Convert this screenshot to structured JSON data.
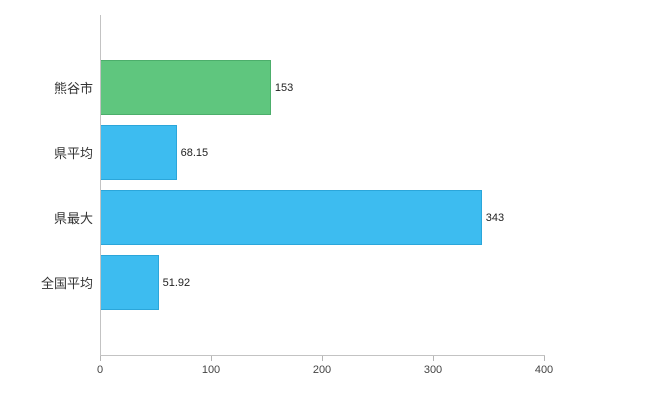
{
  "chart_data": {
    "type": "bar",
    "orientation": "horizontal",
    "title": "",
    "xlabel": "",
    "ylabel": "",
    "categories": [
      "熊谷市",
      "県平均",
      "県最大",
      "全国平均"
    ],
    "values": [
      153,
      68.15,
      343,
      51.92
    ],
    "value_labels": [
      "153",
      "68.15",
      "343",
      "51.92"
    ],
    "bar_colors": [
      "#5fc67e",
      "#3dbcf0",
      "#3dbcf0",
      "#3dbcf0"
    ],
    "bar_border_colors": [
      "#4cae6b",
      "#2ba6da",
      "#2ba6da",
      "#2ba6da"
    ],
    "xlim": [
      0,
      400
    ],
    "xticks": [
      0,
      100,
      200,
      300,
      400
    ],
    "grid": false,
    "legend": false,
    "axis_color": "#c3c3c3"
  }
}
